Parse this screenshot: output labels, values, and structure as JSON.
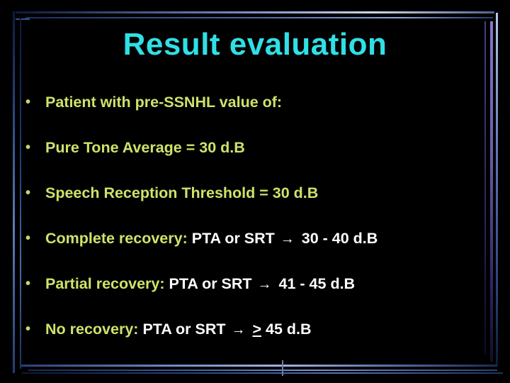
{
  "title": "Result evaluation",
  "bullet_char": "•",
  "arrow_char": "→",
  "items": [
    {
      "label": "Patient with pre-SSNHL value of:"
    },
    {
      "label": "Pure Tone Average = 30 d.B"
    },
    {
      "label": "Speech Reception Threshold = 30 d.B"
    },
    {
      "label": "Complete recovery:",
      "detail": "PTA or SRT",
      "range": "30 - 40 d.B"
    },
    {
      "label": "Partial recovery:",
      "detail": "PTA or SRT",
      "range": "41 - 45 d.B"
    },
    {
      "label": "No recovery:",
      "detail": "PTA or SRT",
      "op": ">",
      "range": "45 d.B"
    }
  ],
  "colors": {
    "background": "#000000",
    "title": "#2fe0e6",
    "bullet_text": "#cfe26a",
    "detail_text": "#ffffff"
  }
}
